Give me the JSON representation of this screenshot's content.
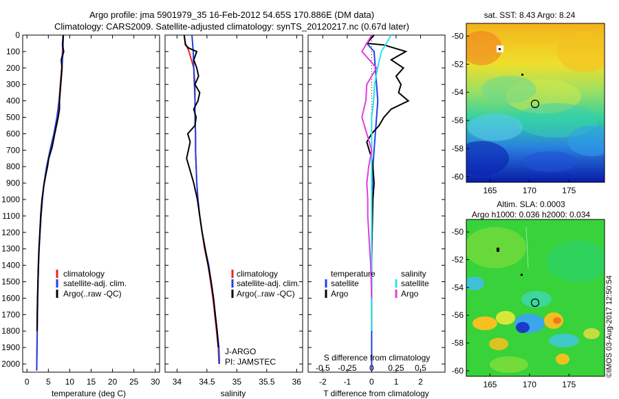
{
  "figure": {
    "title_line1": "Argo profile: jma 5901979_35 16-Feb-2012 54.65S 170.886E (DM data)",
    "title_line2": "Climatology: CARS2009. Satellite-adjusted climatology: synTS_20120217.nc (0.67d later)",
    "watermark": "©IMOS 03-Aug-2017 12:50:54"
  },
  "colors": {
    "climatology": "#e8251d",
    "satellite": "#1f3fe6",
    "argo": "#000000",
    "salinity_satellite": "#28e3f0",
    "salinity_argo": "#e23be0"
  },
  "chart_data": [
    {
      "type": "line",
      "name": "temperature-panel",
      "xlabel": "temperature (deg C)",
      "xlim": [
        -1,
        31
      ],
      "xticks": [
        0,
        5,
        10,
        15,
        20,
        25,
        30
      ],
      "ylim": [
        2050,
        0
      ],
      "yticks": [
        0,
        100,
        200,
        300,
        400,
        500,
        600,
        700,
        800,
        900,
        1000,
        1100,
        1200,
        1300,
        1400,
        1500,
        1600,
        1700,
        1800,
        1900,
        2000
      ],
      "legend": [
        "climatology",
        "satellite-adj. clim.",
        "Argo(..raw -QC)"
      ],
      "series": [
        {
          "name": "climatology",
          "color": "#e8251d",
          "x": [
            8.4,
            8.3,
            8.1,
            7.8,
            7.5,
            7.0,
            6.3,
            5.4,
            4.6,
            4.0,
            3.6,
            3.3,
            3.05,
            2.85,
            2.7,
            2.6,
            2.5,
            2.45,
            2.4,
            2.35,
            2.3,
            2.28
          ],
          "y": [
            0,
            100,
            200,
            300,
            400,
            500,
            600,
            700,
            800,
            900,
            1000,
            1100,
            1200,
            1300,
            1400,
            1500,
            1600,
            1700,
            1800,
            1900,
            2000,
            2040
          ]
        },
        {
          "name": "satellite-adj. clim.",
          "color": "#1f3fe6",
          "x": [
            8.5,
            8.4,
            8.2,
            7.9,
            7.5,
            7.0,
            6.3,
            5.4,
            4.6,
            4.0,
            3.6,
            3.3,
            3.05,
            2.85,
            2.7,
            2.6,
            2.5,
            2.45,
            2.4,
            2.35,
            2.3,
            2.28
          ],
          "y": [
            0,
            100,
            200,
            300,
            400,
            500,
            600,
            700,
            800,
            900,
            1000,
            1100,
            1200,
            1300,
            1400,
            1500,
            1600,
            1700,
            1800,
            1900,
            2000,
            2040
          ]
        },
        {
          "name": "Argo(..raw -QC)",
          "color": "#000000",
          "x": [
            8.5,
            8.3,
            8.6,
            8.0,
            8.2,
            7.9,
            7.6,
            7.6,
            7.3,
            6.9,
            6.5,
            5.9,
            5.1,
            4.8,
            4.4,
            3.9,
            3.5,
            3.2,
            3.0,
            2.8,
            2.65,
            2.55,
            2.45,
            2.4,
            2.35
          ],
          "y": [
            0,
            60,
            100,
            150,
            200,
            300,
            400,
            450,
            500,
            550,
            600,
            680,
            750,
            800,
            850,
            920,
            1000,
            1100,
            1200,
            1300,
            1400,
            1500,
            1600,
            1700,
            1800
          ]
        }
      ]
    },
    {
      "type": "line",
      "name": "salinity-panel",
      "xlabel": "salinity",
      "xlim": [
        33.8,
        36.1
      ],
      "xticks": [
        34,
        34.5,
        35,
        35.5,
        36
      ],
      "xticklabels": [
        "34",
        "34.5",
        "35",
        "35.5",
        "36"
      ],
      "ylim": [
        2050,
        0
      ],
      "legend": [
        "climatology",
        "satellite-adj. clim.",
        "Argo(..raw -QC)"
      ],
      "annotation": [
        "J-ARGO",
        "PI: JAMSTEC"
      ],
      "series": [
        {
          "name": "climatology",
          "color": "#e8251d",
          "x": [
            34.12,
            34.14,
            34.2,
            34.28,
            34.3,
            34.3,
            34.3,
            34.31,
            34.31,
            34.32,
            34.33,
            34.35,
            34.38,
            34.42,
            34.46,
            34.52,
            34.56,
            34.6,
            34.63,
            34.66,
            34.69,
            34.7
          ],
          "y": [
            0,
            50,
            100,
            200,
            300,
            400,
            500,
            600,
            700,
            800,
            900,
            1000,
            1100,
            1200,
            1300,
            1400,
            1500,
            1600,
            1700,
            1800,
            1900,
            2000
          ]
        },
        {
          "name": "satellite-adj. clim.",
          "color": "#1f3fe6",
          "x": [
            34.25,
            34.26,
            34.27,
            34.28,
            34.29,
            34.3,
            34.3,
            34.31,
            34.31,
            34.32,
            34.33,
            34.35,
            34.38,
            34.42,
            34.47,
            34.53,
            34.57,
            34.61,
            34.64,
            34.67,
            34.7,
            34.71
          ],
          "y": [
            0,
            50,
            100,
            200,
            300,
            400,
            500,
            600,
            700,
            800,
            900,
            1000,
            1100,
            1200,
            1300,
            1400,
            1500,
            1600,
            1700,
            1800,
            1900,
            2000
          ]
        },
        {
          "name": "Argo(..raw -QC)",
          "color": "#000000",
          "x": [
            34.12,
            34.14,
            34.2,
            34.33,
            34.28,
            34.33,
            34.36,
            34.3,
            34.38,
            34.35,
            34.28,
            34.32,
            34.3,
            34.18,
            34.22,
            34.16,
            34.2,
            34.28,
            34.34,
            34.38,
            34.42,
            34.47,
            34.52,
            34.57,
            34.61,
            34.64,
            34.67,
            34.69
          ],
          "y": [
            0,
            60,
            80,
            100,
            150,
            200,
            250,
            300,
            350,
            400,
            450,
            500,
            550,
            600,
            650,
            750,
            800,
            900,
            1000,
            1100,
            1200,
            1300,
            1400,
            1500,
            1600,
            1700,
            1800,
            1900
          ]
        }
      ]
    },
    {
      "type": "line",
      "name": "difference-panel",
      "xlabel": "T difference from climatology",
      "xlabel_top": "S difference from climatology",
      "xlim": [
        -2.6,
        3.0
      ],
      "xticks": [
        -2,
        -1,
        0,
        1,
        2
      ],
      "xticks_salinity": [
        -0.5,
        -0.25,
        0,
        0.25,
        0.5
      ],
      "xticklabels_salinity": [
        "-0.5",
        "-0.25",
        "0",
        "0.25",
        "0.5"
      ],
      "ylim": [
        2050,
        0
      ],
      "legend_headers": [
        "temperature",
        "salinity"
      ],
      "legend": [
        "satellite",
        "Argo",
        "satellite",
        "Argo"
      ],
      "series": [
        {
          "name": "T satellite",
          "color": "#1f3fe6",
          "x": [
            0.1,
            -0.2,
            0.1,
            0.15,
            0.2,
            0.25,
            0.2,
            0.15,
            0.1,
            0.05,
            0.02,
            0.0,
            0.0,
            0.0,
            0.0,
            0.0,
            0.0,
            0.0
          ],
          "y": [
            0,
            50,
            100,
            200,
            300,
            400,
            500,
            600,
            700,
            800,
            1000,
            1200,
            1400,
            1600,
            1800,
            1900,
            2000,
            2040
          ]
        },
        {
          "name": "T Argo",
          "color": "#000000",
          "x": [
            0.1,
            -0.2,
            0.5,
            1.4,
            0.8,
            1.3,
            1.0,
            1.2,
            1.1,
            1.5,
            0.8,
            0.5,
            0.3,
            0.0,
            -0.2,
            -0.1,
            0.0,
            0.05,
            0.1,
            0.05,
            0.02,
            0.0,
            0.0,
            0.0
          ],
          "y": [
            0,
            50,
            60,
            100,
            150,
            200,
            250,
            300,
            350,
            400,
            450,
            500,
            550,
            600,
            650,
            700,
            750,
            800,
            900,
            1000,
            1200,
            1400,
            1600,
            1800
          ]
        },
        {
          "name": "S satellite",
          "color": "#28e3f0",
          "x": [
            0.2,
            0.15,
            0.1,
            0.06,
            0.03,
            0.02,
            0.0,
            0.0,
            0.0,
            0.0,
            0.0,
            0.0,
            0.0,
            0.0,
            0.0,
            0.0
          ],
          "y": [
            0,
            50,
            100,
            200,
            300,
            400,
            500,
            600,
            700,
            800,
            900,
            1000,
            1200,
            1400,
            1600,
            1800
          ]
        },
        {
          "name": "S Argo",
          "color": "#e23be0",
          "x": [
            0.0,
            -0.05,
            -0.1,
            0.05,
            -0.05,
            -0.06,
            -0.1,
            -0.05,
            0.0,
            -0.03,
            -0.05,
            -0.04,
            -0.04,
            -0.03,
            -0.02,
            -0.01,
            0.0
          ],
          "y": [
            0,
            50,
            100,
            200,
            300,
            400,
            500,
            600,
            700,
            800,
            900,
            1000,
            1100,
            1200,
            1300,
            1400,
            1600
          ]
        }
      ]
    },
    {
      "type": "heatmap",
      "name": "sst-map",
      "title": "sat. SST: 8.43 Argo: 8.24",
      "xlim": [
        162,
        179.5
      ],
      "ylim": [
        -60.4,
        -49.1
      ],
      "xticks": [
        165,
        170,
        175
      ],
      "yticks": [
        -50,
        -52,
        -54,
        -56,
        -58,
        -60
      ],
      "marker": {
        "lon": 170.886,
        "lat": -54.65
      }
    },
    {
      "type": "heatmap",
      "name": "sla-map",
      "title_line1": "Altim. SLA: 0.0003",
      "title_line2": "Argo h1000: 0.036 h2000: 0.034",
      "xlim": [
        162,
        179.5
      ],
      "ylim": [
        -60.4,
        -49.1
      ],
      "xticks": [
        165,
        170,
        175
      ],
      "yticks": [
        -50,
        -52,
        -54,
        -56,
        -58,
        -60
      ],
      "marker": {
        "lon": 170.886,
        "lat": -54.65
      }
    }
  ]
}
